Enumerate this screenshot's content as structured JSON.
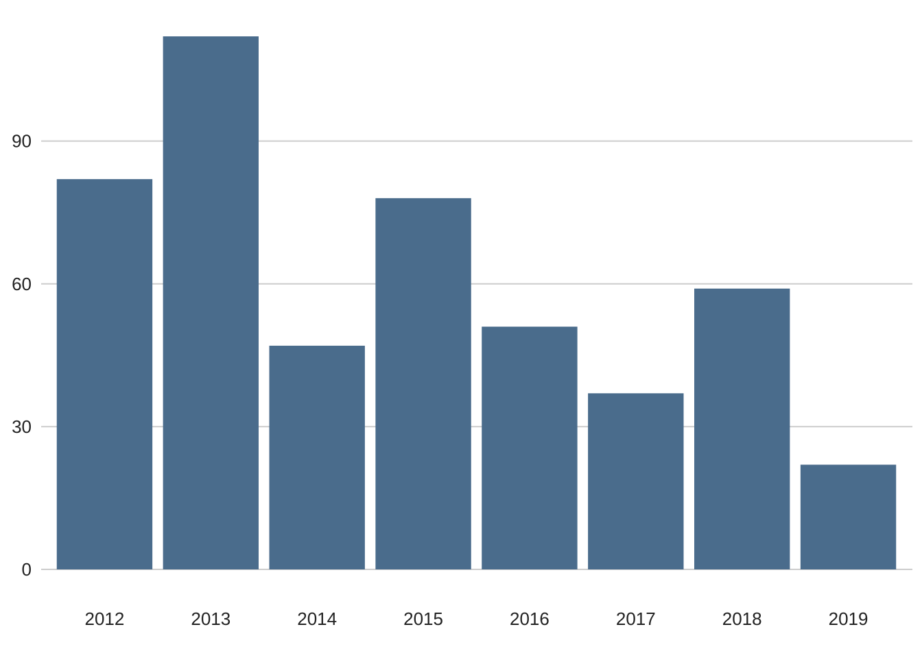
{
  "chart_data": {
    "type": "bar",
    "title": "",
    "xlabel": "",
    "ylabel": "",
    "categories": [
      "2012",
      "2013",
      "2014",
      "2015",
      "2016",
      "2017",
      "2018",
      "2019"
    ],
    "values": [
      82,
      112,
      47,
      78,
      51,
      37,
      59,
      22
    ],
    "ylim": [
      0,
      112
    ],
    "yticks": [
      0,
      30,
      60,
      90
    ],
    "ytick_labels": [
      "0",
      "30",
      "60",
      "90"
    ],
    "grid": "horizontal",
    "legend": "none",
    "colors": {
      "bar": "#4a6c8c",
      "grid": "#cccccc",
      "text": "#222222",
      "background": "#ffffff"
    }
  }
}
